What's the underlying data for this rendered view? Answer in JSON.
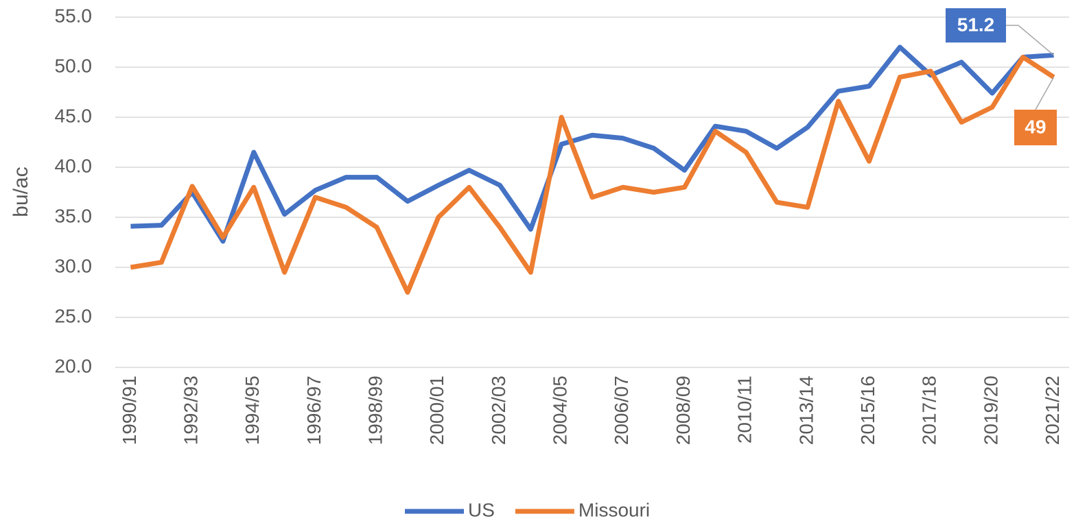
{
  "chart_data": {
    "type": "line",
    "y_label": "bu/ac",
    "categories": [
      "1990/91",
      null,
      "1992/93",
      null,
      "1994/95",
      null,
      "1996/97",
      null,
      "1998/99",
      null,
      "2000/01",
      null,
      "2002/03",
      null,
      "2004/05",
      null,
      "2006/07",
      null,
      "2008/09",
      null,
      "2010/11",
      null,
      "2013/14",
      null,
      "2015/16",
      null,
      "2017/18",
      null,
      "2019/20",
      null,
      "2021/22"
    ],
    "series": [
      {
        "name": "US",
        "color": "#4472c4",
        "values": [
          34.1,
          34.2,
          37.5,
          32.6,
          41.5,
          35.3,
          37.7,
          39.0,
          39.0,
          36.6,
          38.2,
          39.7,
          38.2,
          33.8,
          42.3,
          43.2,
          42.9,
          41.9,
          39.7,
          44.1,
          43.6,
          41.9,
          44.0,
          47.6,
          48.1,
          52.0,
          49.2,
          50.5,
          47.4,
          51.0,
          51.2
        ]
      },
      {
        "name": "Missouri",
        "color": "#ed7d31",
        "values": [
          30.0,
          30.5,
          38.1,
          33.0,
          38.0,
          29.5,
          37.0,
          36.0,
          34.0,
          27.5,
          35.0,
          38.0,
          34.0,
          29.5,
          45.0,
          37.0,
          38.0,
          37.5,
          38.0,
          43.6,
          41.5,
          36.5,
          36.0,
          46.6,
          40.6,
          49.0,
          49.6,
          44.5,
          46.0,
          51.0,
          49.0
        ]
      }
    ],
    "ylim": [
      20,
      55
    ],
    "yticks": [
      {
        "value": 20,
        "label": "20.0"
      },
      {
        "value": 25,
        "label": "25.0"
      },
      {
        "value": 30,
        "label": "30.0"
      },
      {
        "value": 35,
        "label": "35.0"
      },
      {
        "value": 40,
        "label": "40.0"
      },
      {
        "value": 45,
        "label": "45.0"
      },
      {
        "value": 50,
        "label": "50.0"
      },
      {
        "value": 55,
        "label": "55.0"
      }
    ],
    "grid": true,
    "legend": "bottom"
  }
}
